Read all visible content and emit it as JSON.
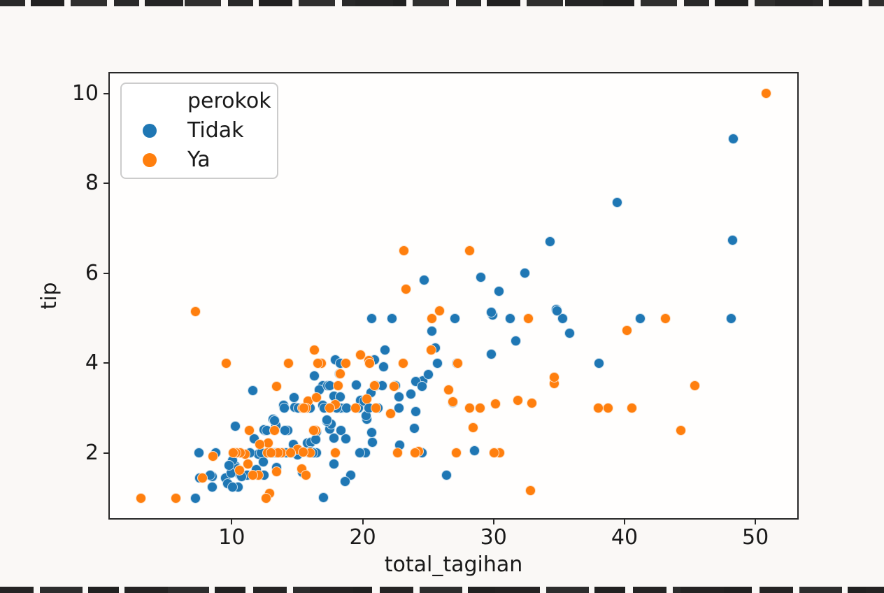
{
  "figure": {
    "background_color": "#faf8f6",
    "plot_background_color": "#fffefd",
    "spine_color": "#282828",
    "text_color": "#1a1a1a",
    "artifact_strip_color": "#141414"
  },
  "chart_data": {
    "type": "scatter",
    "title": "",
    "xlabel": "total_tagihan",
    "ylabel": "tip",
    "xlim": [
      0.683,
      53.197
    ],
    "ylim": [
      0.55,
      10.45
    ],
    "x_ticks": [
      10,
      20,
      30,
      40,
      50
    ],
    "y_ticks": [
      2,
      4,
      6,
      8,
      10
    ],
    "grid": false,
    "legend": {
      "title": "perokok",
      "position": "upper left"
    },
    "series": [
      {
        "name": "Tidak",
        "color": "#1f77b4",
        "points": [
          [
            16.99,
            1.01
          ],
          [
            10.34,
            1.66
          ],
          [
            21.01,
            3.5
          ],
          [
            23.68,
            3.31
          ],
          [
            24.59,
            3.61
          ],
          [
            25.29,
            4.71
          ],
          [
            8.77,
            2
          ],
          [
            26.88,
            3.12
          ],
          [
            15.04,
            1.96
          ],
          [
            14.78,
            3.23
          ],
          [
            10.27,
            1.71
          ],
          [
            35.26,
            5
          ],
          [
            15.42,
            1.57
          ],
          [
            18.43,
            3
          ],
          [
            14.83,
            3.02
          ],
          [
            21.58,
            3.92
          ],
          [
            10.33,
            1.67
          ],
          [
            16.29,
            3.71
          ],
          [
            16.97,
            3.5
          ],
          [
            20.65,
            3.35
          ],
          [
            17.92,
            4.08
          ],
          [
            20.29,
            2.75
          ],
          [
            15.77,
            2.23
          ],
          [
            39.42,
            7.58
          ],
          [
            19.82,
            3.18
          ],
          [
            17.81,
            2.34
          ],
          [
            13.37,
            2
          ],
          [
            12.69,
            2
          ],
          [
            21.7,
            4.3
          ],
          [
            19.65,
            3
          ],
          [
            9.55,
            1.45
          ],
          [
            18.35,
            2.5
          ],
          [
            15.06,
            3
          ],
          [
            20.69,
            2.45
          ],
          [
            17.78,
            3.27
          ],
          [
            24.06,
            3.6
          ],
          [
            16.31,
            2
          ],
          [
            16.93,
            3.07
          ],
          [
            18.69,
            2.31
          ],
          [
            31.27,
            5
          ],
          [
            16.04,
            2.24
          ],
          [
            17.46,
            2.54
          ],
          [
            13.94,
            3.06
          ],
          [
            9.68,
            1.32
          ],
          [
            30.4,
            5.6
          ],
          [
            18.29,
            3
          ],
          [
            22.23,
            5
          ],
          [
            32.4,
            6
          ],
          [
            28.55,
            2.05
          ],
          [
            18.04,
            3
          ],
          [
            12.54,
            2.5
          ],
          [
            10.29,
            2.6
          ],
          [
            34.81,
            5.2
          ],
          [
            9.94,
            1.56
          ],
          [
            25.56,
            4.34
          ],
          [
            19.49,
            3.51
          ],
          [
            26.41,
            1.5
          ],
          [
            48.27,
            6.73
          ],
          [
            17.59,
            2.64
          ],
          [
            20.08,
            3.15
          ],
          [
            16.45,
            2.47
          ],
          [
            20.23,
            2.01
          ],
          [
            12.02,
            1.97
          ],
          [
            17.07,
            3
          ],
          [
            14.73,
            2.2
          ],
          [
            10.51,
            1.25
          ],
          [
            27.2,
            4
          ],
          [
            22.76,
            3
          ],
          [
            17.29,
            2.71
          ],
          [
            16.66,
            3.4
          ],
          [
            10.07,
            1.83
          ],
          [
            15.98,
            2.03
          ],
          [
            34.83,
            5.17
          ],
          [
            13.03,
            2
          ],
          [
            18.28,
            4
          ],
          [
            24.71,
            5.85
          ],
          [
            21.16,
            3
          ],
          [
            22.49,
            3.5
          ],
          [
            22.75,
            3.25
          ],
          [
            12.46,
            1.5
          ],
          [
            20.92,
            4.08
          ],
          [
            18.24,
            3.76
          ],
          [
            14,
            3
          ],
          [
            7.25,
            1
          ],
          [
            38.07,
            4
          ],
          [
            23.95,
            2.55
          ],
          [
            25.71,
            4
          ],
          [
            17.31,
            3.5
          ],
          [
            29.93,
            5.07
          ],
          [
            10.65,
            1.5
          ],
          [
            12.43,
            1.8
          ],
          [
            24.08,
            2.92
          ],
          [
            11.69,
            2.31
          ],
          [
            13.42,
            1.68
          ],
          [
            14.26,
            2.5
          ],
          [
            15.95,
            2
          ],
          [
            12.48,
            2.52
          ],
          [
            29.8,
            4.2
          ],
          [
            8.52,
            1.48
          ],
          [
            14.52,
            2
          ],
          [
            11.38,
            2
          ],
          [
            22.82,
            2.18
          ],
          [
            19.08,
            1.5
          ],
          [
            20.27,
            2.83
          ],
          [
            11.17,
            1.5
          ],
          [
            12.26,
            2
          ],
          [
            18.26,
            3.25
          ],
          [
            8.51,
            1.25
          ],
          [
            10.33,
            2
          ],
          [
            14.15,
            2
          ],
          [
            13.16,
            2.75
          ],
          [
            17.47,
            3.5
          ],
          [
            34.3,
            6.7
          ],
          [
            41.19,
            5
          ],
          [
            27.05,
            5
          ],
          [
            16.43,
            2.3
          ],
          [
            8.35,
            1.5
          ],
          [
            18.64,
            1.36
          ],
          [
            11.87,
            1.63
          ],
          [
            9.78,
            1.73
          ],
          [
            7.51,
            2
          ],
          [
            14.07,
            2.5
          ],
          [
            13.13,
            2
          ],
          [
            17.26,
            2.74
          ],
          [
            24.55,
            2
          ],
          [
            19.77,
            2
          ],
          [
            29.85,
            5.14
          ],
          [
            48.17,
            5
          ],
          [
            25,
            3.75
          ],
          [
            13.39,
            2.61
          ],
          [
            16.49,
            2
          ],
          [
            21.5,
            3.5
          ],
          [
            12.66,
            2.5
          ],
          [
            16.21,
            2
          ],
          [
            13.81,
            2
          ],
          [
            24.52,
            3.48
          ],
          [
            20.76,
            2.24
          ],
          [
            31.71,
            4.5
          ],
          [
            20.69,
            5
          ],
          [
            7.56,
            1.44
          ],
          [
            48.33,
            9
          ],
          [
            15.98,
            3
          ],
          [
            20.45,
            3
          ],
          [
            13.28,
            2.72
          ],
          [
            11.61,
            3.39
          ],
          [
            10.77,
            1.47
          ],
          [
            10.07,
            1.25
          ],
          [
            35.83,
            4.67
          ],
          [
            29.03,
            5.92
          ],
          [
            17.82,
            1.75
          ],
          [
            18.78,
            3
          ]
        ]
      },
      {
        "name": "Ya",
        "color": "#ff7f0e",
        "points": [
          [
            38.01,
            3
          ],
          [
            11.24,
            1.76
          ],
          [
            20.29,
            3.21
          ],
          [
            13.81,
            2
          ],
          [
            11.02,
            1.98
          ],
          [
            18.29,
            3.76
          ],
          [
            3.07,
            1
          ],
          [
            15.01,
            2.09
          ],
          [
            26.86,
            3.14
          ],
          [
            25.28,
            5
          ],
          [
            17.92,
            3.08
          ],
          [
            19.44,
            3
          ],
          [
            32.68,
            5
          ],
          [
            28.97,
            3
          ],
          [
            5.75,
            1
          ],
          [
            16.32,
            4.3
          ],
          [
            40.17,
            4.73
          ],
          [
            27.28,
            4
          ],
          [
            12.03,
            1.5
          ],
          [
            21.01,
            3
          ],
          [
            11.35,
            2.5
          ],
          [
            15.38,
            3
          ],
          [
            44.3,
            2.5
          ],
          [
            22.42,
            3.48
          ],
          [
            15.36,
            1.64
          ],
          [
            20.49,
            4.06
          ],
          [
            25.21,
            4.29
          ],
          [
            14.31,
            4
          ],
          [
            16,
            2
          ],
          [
            17.51,
            3
          ],
          [
            10.59,
            1.61
          ],
          [
            10.63,
            2
          ],
          [
            50.81,
            10
          ],
          [
            15.81,
            3.16
          ],
          [
            7.25,
            5.15
          ],
          [
            31.85,
            3.18
          ],
          [
            16.82,
            4
          ],
          [
            32.9,
            3.11
          ],
          [
            17.89,
            2
          ],
          [
            14.48,
            2
          ],
          [
            9.6,
            4
          ],
          [
            34.63,
            3.55
          ],
          [
            34.65,
            3.68
          ],
          [
            23.33,
            5.65
          ],
          [
            45.35,
            3.5
          ],
          [
            23.17,
            6.5
          ],
          [
            40.55,
            3
          ],
          [
            20.9,
            3.5
          ],
          [
            30.46,
            2
          ],
          [
            18.15,
            3.5
          ],
          [
            23.1,
            4
          ],
          [
            15.69,
            1.5
          ],
          [
            19.81,
            4.19
          ],
          [
            28.44,
            2.56
          ],
          [
            15.48,
            2.02
          ],
          [
            16.58,
            4
          ],
          [
            10.34,
            2
          ],
          [
            43.11,
            5
          ],
          [
            13,
            2
          ],
          [
            13.51,
            2
          ],
          [
            18.71,
            4
          ],
          [
            12.74,
            2.01
          ],
          [
            13,
            2
          ],
          [
            16.4,
            2.5
          ],
          [
            20.53,
            4
          ],
          [
            16.47,
            3.23
          ],
          [
            26.59,
            3.41
          ],
          [
            38.73,
            3
          ],
          [
            24.27,
            2.03
          ],
          [
            12.76,
            2.23
          ],
          [
            30.06,
            2
          ],
          [
            25.89,
            5.16
          ],
          [
            13.27,
            2.5
          ],
          [
            28.17,
            6.5
          ],
          [
            12.9,
            1.1
          ],
          [
            28.15,
            3
          ],
          [
            11.59,
            1.5
          ],
          [
            7.74,
            1.44
          ],
          [
            30.14,
            3.09
          ],
          [
            12.16,
            2.2
          ],
          [
            13.42,
            3.48
          ],
          [
            8.58,
            1.92
          ],
          [
            13.42,
            1.58
          ],
          [
            16.27,
            2.5
          ],
          [
            10.09,
            2
          ],
          [
            22.12,
            2.88
          ],
          [
            24.01,
            2
          ],
          [
            15.69,
            3
          ],
          [
            15.53,
            3
          ],
          [
            12.6,
            1
          ],
          [
            32.83,
            1.17
          ],
          [
            27.18,
            2
          ],
          [
            22.67,
            2
          ]
        ]
      }
    ]
  }
}
